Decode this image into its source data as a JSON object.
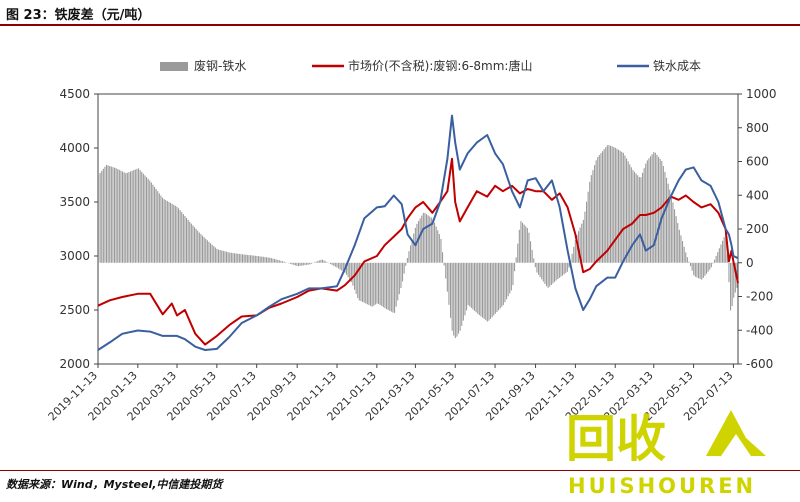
{
  "figure": {
    "title": "图 23：铁废差（元/吨）",
    "source": "数据来源：Wind，Mysteel,中信建投期货"
  },
  "watermark": {
    "glyphs": "回收",
    "text": "HUISHOUREN",
    "color": "#cfd400"
  },
  "chart_data": {
    "type": "line",
    "left_axis": {
      "ylim": [
        2000,
        4500
      ],
      "ticks": [
        2000,
        2500,
        3000,
        3500,
        4000,
        4500
      ]
    },
    "right_axis": {
      "ylim": [
        -600,
        1000
      ],
      "ticks": [
        -600,
        -400,
        -200,
        0,
        200,
        400,
        600,
        800,
        1000
      ]
    },
    "x_range": [
      "2019-11-13",
      "2022-07-20"
    ],
    "x_tick_labels": [
      "2019-11-13",
      "2020-01-13",
      "2020-03-13",
      "2020-05-13",
      "2020-07-13",
      "2020-09-13",
      "2020-11-13",
      "2021-01-13",
      "2021-03-13",
      "2021-05-13",
      "2021-07-13",
      "2021-09-13",
      "2021-11-13",
      "2022-01-13",
      "2022-03-13",
      "2022-05-13",
      "2022-07-13"
    ],
    "legend_position": "top",
    "series": [
      {
        "name": "废钢-铁水",
        "type": "bar",
        "axis": "right",
        "color": "#9a9a9a",
        "points": [
          [
            "2019-11-13",
            520
          ],
          [
            "2019-11-25",
            580
          ],
          [
            "2019-12-10",
            560
          ],
          [
            "2019-12-25",
            530
          ],
          [
            "2020-01-13",
            560
          ],
          [
            "2020-02-01",
            480
          ],
          [
            "2020-02-20",
            380
          ],
          [
            "2020-03-13",
            330
          ],
          [
            "2020-03-30",
            250
          ],
          [
            "2020-04-15",
            180
          ],
          [
            "2020-05-01",
            120
          ],
          [
            "2020-05-13",
            80
          ],
          [
            "2020-06-01",
            60
          ],
          [
            "2020-06-20",
            50
          ],
          [
            "2020-07-13",
            40
          ],
          [
            "2020-08-01",
            30
          ],
          [
            "2020-08-20",
            10
          ],
          [
            "2020-09-13",
            -20
          ],
          [
            "2020-10-01",
            -10
          ],
          [
            "2020-10-20",
            20
          ],
          [
            "2020-11-13",
            -30
          ],
          [
            "2020-11-25",
            -60
          ],
          [
            "2020-12-05",
            -120
          ],
          [
            "2020-12-15",
            -220
          ],
          [
            "2021-01-05",
            -260
          ],
          [
            "2021-01-13",
            -240
          ],
          [
            "2021-01-25",
            -270
          ],
          [
            "2021-02-08",
            -300
          ],
          [
            "2021-02-20",
            -120
          ],
          [
            "2021-03-01",
            50
          ],
          [
            "2021-03-13",
            220
          ],
          [
            "2021-03-25",
            300
          ],
          [
            "2021-04-08",
            260
          ],
          [
            "2021-04-20",
            150
          ],
          [
            "2021-05-01",
            -200
          ],
          [
            "2021-05-08",
            -420
          ],
          [
            "2021-05-13",
            -450
          ],
          [
            "2021-05-20",
            -400
          ],
          [
            "2021-06-01",
            -250
          ],
          [
            "2021-06-15",
            -300
          ],
          [
            "2021-07-01",
            -350
          ],
          [
            "2021-07-13",
            -300
          ],
          [
            "2021-07-25",
            -250
          ],
          [
            "2021-08-08",
            -150
          ],
          [
            "2021-08-20",
            250
          ],
          [
            "2021-09-01",
            200
          ],
          [
            "2021-09-13",
            -50
          ],
          [
            "2021-10-01",
            -150
          ],
          [
            "2021-10-15",
            -100
          ],
          [
            "2021-11-01",
            -50
          ],
          [
            "2021-11-13",
            150
          ],
          [
            "2021-11-25",
            260
          ],
          [
            "2021-12-05",
            500
          ],
          [
            "2021-12-15",
            620
          ],
          [
            "2022-01-01",
            700
          ],
          [
            "2022-01-13",
            680
          ],
          [
            "2022-01-25",
            650
          ],
          [
            "2022-02-08",
            550
          ],
          [
            "2022-02-20",
            500
          ],
          [
            "2022-03-01",
            600
          ],
          [
            "2022-03-13",
            660
          ],
          [
            "2022-03-25",
            600
          ],
          [
            "2022-04-08",
            400
          ],
          [
            "2022-04-20",
            200
          ],
          [
            "2022-05-01",
            50
          ],
          [
            "2022-05-13",
            -80
          ],
          [
            "2022-05-25",
            -100
          ],
          [
            "2022-06-08",
            -30
          ],
          [
            "2022-06-20",
            80
          ],
          [
            "2022-07-01",
            180
          ],
          [
            "2022-07-08",
            -300
          ],
          [
            "2022-07-13",
            -200
          ],
          [
            "2022-07-20",
            -120
          ]
        ]
      },
      {
        "name": "市场价(不含税):废钢:6-8mm:唐山",
        "type": "line",
        "axis": "left",
        "color": "#c00000",
        "points": [
          [
            "2019-11-13",
            2540
          ],
          [
            "2019-12-01",
            2590
          ],
          [
            "2019-12-20",
            2620
          ],
          [
            "2020-01-13",
            2650
          ],
          [
            "2020-02-01",
            2650
          ],
          [
            "2020-02-20",
            2460
          ],
          [
            "2020-03-05",
            2560
          ],
          [
            "2020-03-13",
            2450
          ],
          [
            "2020-03-25",
            2500
          ],
          [
            "2020-04-10",
            2280
          ],
          [
            "2020-04-25",
            2180
          ],
          [
            "2020-05-13",
            2260
          ],
          [
            "2020-06-01",
            2360
          ],
          [
            "2020-06-20",
            2440
          ],
          [
            "2020-07-13",
            2450
          ],
          [
            "2020-08-01",
            2520
          ],
          [
            "2020-08-20",
            2560
          ],
          [
            "2020-09-13",
            2620
          ],
          [
            "2020-10-01",
            2680
          ],
          [
            "2020-10-20",
            2700
          ],
          [
            "2020-11-13",
            2680
          ],
          [
            "2020-11-25",
            2730
          ],
          [
            "2020-12-10",
            2820
          ],
          [
            "2020-12-25",
            2950
          ],
          [
            "2021-01-13",
            3000
          ],
          [
            "2021-01-25",
            3100
          ],
          [
            "2021-02-08",
            3180
          ],
          [
            "2021-02-20",
            3250
          ],
          [
            "2021-03-01",
            3350
          ],
          [
            "2021-03-13",
            3450
          ],
          [
            "2021-03-25",
            3500
          ],
          [
            "2021-04-08",
            3400
          ],
          [
            "2021-04-20",
            3500
          ],
          [
            "2021-05-01",
            3600
          ],
          [
            "2021-05-08",
            3900
          ],
          [
            "2021-05-13",
            3500
          ],
          [
            "2021-05-20",
            3320
          ],
          [
            "2021-06-01",
            3450
          ],
          [
            "2021-06-15",
            3600
          ],
          [
            "2021-07-01",
            3550
          ],
          [
            "2021-07-13",
            3650
          ],
          [
            "2021-07-25",
            3600
          ],
          [
            "2021-08-08",
            3650
          ],
          [
            "2021-08-20",
            3580
          ],
          [
            "2021-09-01",
            3620
          ],
          [
            "2021-09-13",
            3600
          ],
          [
            "2021-09-25",
            3600
          ],
          [
            "2021-10-08",
            3520
          ],
          [
            "2021-10-20",
            3580
          ],
          [
            "2021-11-01",
            3450
          ],
          [
            "2021-11-13",
            3200
          ],
          [
            "2021-11-25",
            2850
          ],
          [
            "2021-12-05",
            2880
          ],
          [
            "2021-12-15",
            2950
          ],
          [
            "2022-01-01",
            3050
          ],
          [
            "2022-01-13",
            3150
          ],
          [
            "2022-01-25",
            3250
          ],
          [
            "2022-02-08",
            3300
          ],
          [
            "2022-02-20",
            3380
          ],
          [
            "2022-03-01",
            3380
          ],
          [
            "2022-03-13",
            3400
          ],
          [
            "2022-03-25",
            3450
          ],
          [
            "2022-04-08",
            3550
          ],
          [
            "2022-04-20",
            3520
          ],
          [
            "2022-05-01",
            3560
          ],
          [
            "2022-05-13",
            3500
          ],
          [
            "2022-05-25",
            3450
          ],
          [
            "2022-06-08",
            3480
          ],
          [
            "2022-06-20",
            3400
          ],
          [
            "2022-07-01",
            3250
          ],
          [
            "2022-07-06",
            2950
          ],
          [
            "2022-07-10",
            3050
          ],
          [
            "2022-07-13",
            2950
          ],
          [
            "2022-07-20",
            2750
          ]
        ]
      },
      {
        "name": "铁水成本",
        "type": "line",
        "axis": "left",
        "color": "#3a5fa0",
        "points": [
          [
            "2019-11-13",
            2130
          ],
          [
            "2019-12-01",
            2200
          ],
          [
            "2019-12-20",
            2280
          ],
          [
            "2020-01-13",
            2310
          ],
          [
            "2020-02-01",
            2300
          ],
          [
            "2020-02-20",
            2260
          ],
          [
            "2020-03-13",
            2260
          ],
          [
            "2020-03-25",
            2230
          ],
          [
            "2020-04-10",
            2160
          ],
          [
            "2020-04-25",
            2130
          ],
          [
            "2020-05-13",
            2140
          ],
          [
            "2020-06-01",
            2250
          ],
          [
            "2020-06-20",
            2380
          ],
          [
            "2020-07-13",
            2450
          ],
          [
            "2020-08-01",
            2530
          ],
          [
            "2020-08-20",
            2600
          ],
          [
            "2020-09-13",
            2650
          ],
          [
            "2020-10-01",
            2700
          ],
          [
            "2020-10-20",
            2700
          ],
          [
            "2020-11-13",
            2720
          ],
          [
            "2020-11-25",
            2880
          ],
          [
            "2020-12-10",
            3100
          ],
          [
            "2020-12-25",
            3350
          ],
          [
            "2021-01-13",
            3450
          ],
          [
            "2021-01-25",
            3460
          ],
          [
            "2021-02-08",
            3560
          ],
          [
            "2021-02-20",
            3480
          ],
          [
            "2021-03-01",
            3200
          ],
          [
            "2021-03-13",
            3100
          ],
          [
            "2021-03-25",
            3250
          ],
          [
            "2021-04-08",
            3300
          ],
          [
            "2021-04-20",
            3500
          ],
          [
            "2021-05-01",
            3900
          ],
          [
            "2021-05-08",
            4300
          ],
          [
            "2021-05-13",
            4050
          ],
          [
            "2021-05-20",
            3800
          ],
          [
            "2021-06-01",
            3950
          ],
          [
            "2021-06-15",
            4050
          ],
          [
            "2021-07-01",
            4120
          ],
          [
            "2021-07-13",
            3950
          ],
          [
            "2021-07-25",
            3850
          ],
          [
            "2021-08-08",
            3600
          ],
          [
            "2021-08-20",
            3450
          ],
          [
            "2021-09-01",
            3700
          ],
          [
            "2021-09-13",
            3720
          ],
          [
            "2021-09-25",
            3600
          ],
          [
            "2021-10-08",
            3700
          ],
          [
            "2021-10-20",
            3450
          ],
          [
            "2021-11-01",
            3050
          ],
          [
            "2021-11-13",
            2700
          ],
          [
            "2021-11-25",
            2500
          ],
          [
            "2021-12-05",
            2600
          ],
          [
            "2021-12-15",
            2720
          ],
          [
            "2022-01-01",
            2800
          ],
          [
            "2022-01-13",
            2800
          ],
          [
            "2022-01-25",
            2950
          ],
          [
            "2022-02-08",
            3100
          ],
          [
            "2022-02-20",
            3200
          ],
          [
            "2022-03-01",
            3050
          ],
          [
            "2022-03-13",
            3100
          ],
          [
            "2022-03-25",
            3350
          ],
          [
            "2022-04-08",
            3550
          ],
          [
            "2022-04-20",
            3700
          ],
          [
            "2022-05-01",
            3800
          ],
          [
            "2022-05-13",
            3820
          ],
          [
            "2022-05-25",
            3700
          ],
          [
            "2022-06-08",
            3650
          ],
          [
            "2022-06-20",
            3500
          ],
          [
            "2022-07-01",
            3250
          ],
          [
            "2022-07-06",
            3200
          ],
          [
            "2022-07-10",
            3100
          ],
          [
            "2022-07-13",
            3000
          ],
          [
            "2022-07-20",
            2980
          ]
        ]
      }
    ]
  }
}
